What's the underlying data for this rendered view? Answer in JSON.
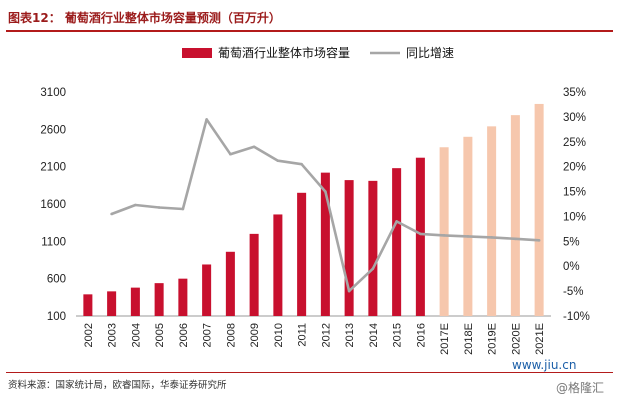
{
  "header": {
    "title": "图表12：  葡萄酒行业整体市场容量预测（百万升）"
  },
  "source": "资料来源：国家统计局，欧睿国际，华泰证券研究所",
  "watermark": {
    "url": "www.jiu.cn",
    "brand": "@格隆汇"
  },
  "colors": {
    "bar_actual": "#c8102e",
    "bar_forecast": "#f6c7ad",
    "line": "#a6a6a6",
    "title": "#9b1b1b"
  },
  "chart_data": {
    "type": "bar",
    "title": "",
    "categories": [
      "2002",
      "2003",
      "2004",
      "2005",
      "2006",
      "2007",
      "2008",
      "2009",
      "2010",
      "2011",
      "2012",
      "2013",
      "2014",
      "2015",
      "2016",
      "2017E",
      "2018E",
      "2019E",
      "2020E",
      "2021E"
    ],
    "series": [
      {
        "name": "葡萄酒行业整体市场容量",
        "type": "bar",
        "axis": "left",
        "values": [
          390,
          430,
          480,
          540,
          600,
          790,
          960,
          1200,
          1460,
          1750,
          2020,
          1920,
          1910,
          2080,
          2220,
          2360,
          2500,
          2640,
          2790,
          2940
        ]
      },
      {
        "name": "同比增速",
        "type": "line",
        "axis": "right",
        "values": [
          null,
          10.5,
          12.3,
          11.8,
          11.5,
          29.5,
          22.5,
          24.0,
          21.2,
          20.5,
          15.0,
          -5.0,
          -0.5,
          9.0,
          6.5,
          6.2,
          6.0,
          5.8,
          5.5,
          5.2
        ]
      }
    ],
    "forecast_from_index": 15,
    "y_left": {
      "ticks": [
        100,
        600,
        1100,
        1600,
        2100,
        2600,
        3100
      ],
      "range": [
        100,
        3100
      ]
    },
    "y_right": {
      "ticks": [
        "35%",
        "30%",
        "25%",
        "20%",
        "15%",
        "10%",
        "5%",
        "0%",
        "-5%",
        "-10%"
      ],
      "range": [
        -10,
        35
      ]
    },
    "legend_position": "top-center",
    "grid": false
  }
}
